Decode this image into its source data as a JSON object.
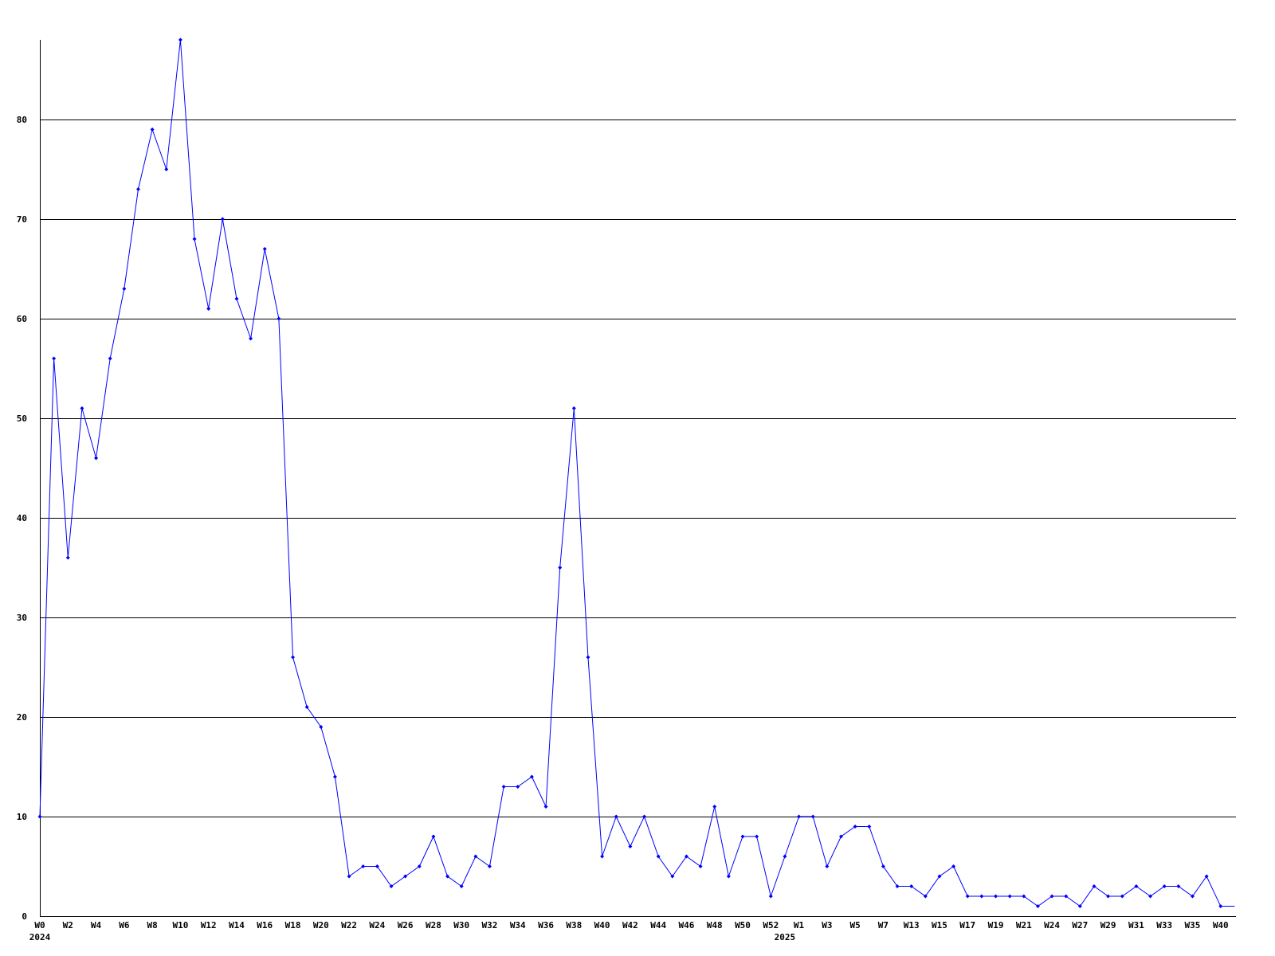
{
  "chart_data": {
    "type": "line",
    "title": "",
    "xlabel": "",
    "ylabel": "",
    "ylim": [
      0,
      88
    ],
    "yticks": [
      0,
      10,
      20,
      30,
      40,
      50,
      60,
      70,
      80
    ],
    "grid": "horizontal",
    "line_color": "#0000ff",
    "grid_color": "#000000",
    "categories": [
      "W0",
      "",
      "W2",
      "",
      "W4",
      "",
      "W6",
      "",
      "W8",
      "",
      "W10",
      "",
      "W12",
      "",
      "W14",
      "",
      "W16",
      "",
      "W18",
      "",
      "W20",
      "",
      "W22",
      "",
      "W24",
      "",
      "W26",
      "",
      "W28",
      "",
      "W30",
      "",
      "W32",
      "",
      "W34",
      "",
      "W36",
      "",
      "W38",
      "",
      "W40",
      "",
      "W42",
      "",
      "W44",
      "",
      "W46",
      "",
      "W48",
      "",
      "W50",
      "",
      "W52",
      "",
      "W1",
      "",
      "W3",
      "",
      "W5",
      "",
      "W7",
      "",
      "W13",
      "",
      "W15",
      "",
      "W17",
      "",
      "W19",
      "",
      "W21",
      "",
      "W24",
      "",
      "W27",
      "",
      "W29",
      "",
      "W31",
      "",
      "W33",
      "",
      "W35",
      "",
      "W40",
      ""
    ],
    "year_labels": [
      {
        "index": 0,
        "label": "2024"
      },
      {
        "index": 53,
        "label": "2025"
      }
    ],
    "values": [
      10,
      56,
      36,
      51,
      46,
      56,
      63,
      73,
      79,
      75,
      88,
      68,
      61,
      70,
      62,
      58,
      67,
      60,
      26,
      21,
      19,
      14,
      4,
      5,
      5,
      3,
      4,
      5,
      8,
      4,
      3,
      6,
      5,
      13,
      13,
      14,
      11,
      35,
      51,
      26,
      6,
      10,
      7,
      10,
      6,
      4,
      6,
      5,
      11,
      4,
      8,
      8,
      2,
      6,
      10,
      10,
      5,
      8,
      9,
      9,
      5,
      3,
      3,
      2,
      4,
      5,
      2,
      2,
      2,
      2,
      2,
      1,
      2,
      2,
      1,
      3,
      2,
      2,
      3,
      2,
      3,
      3,
      2,
      4,
      1,
      1
    ]
  }
}
